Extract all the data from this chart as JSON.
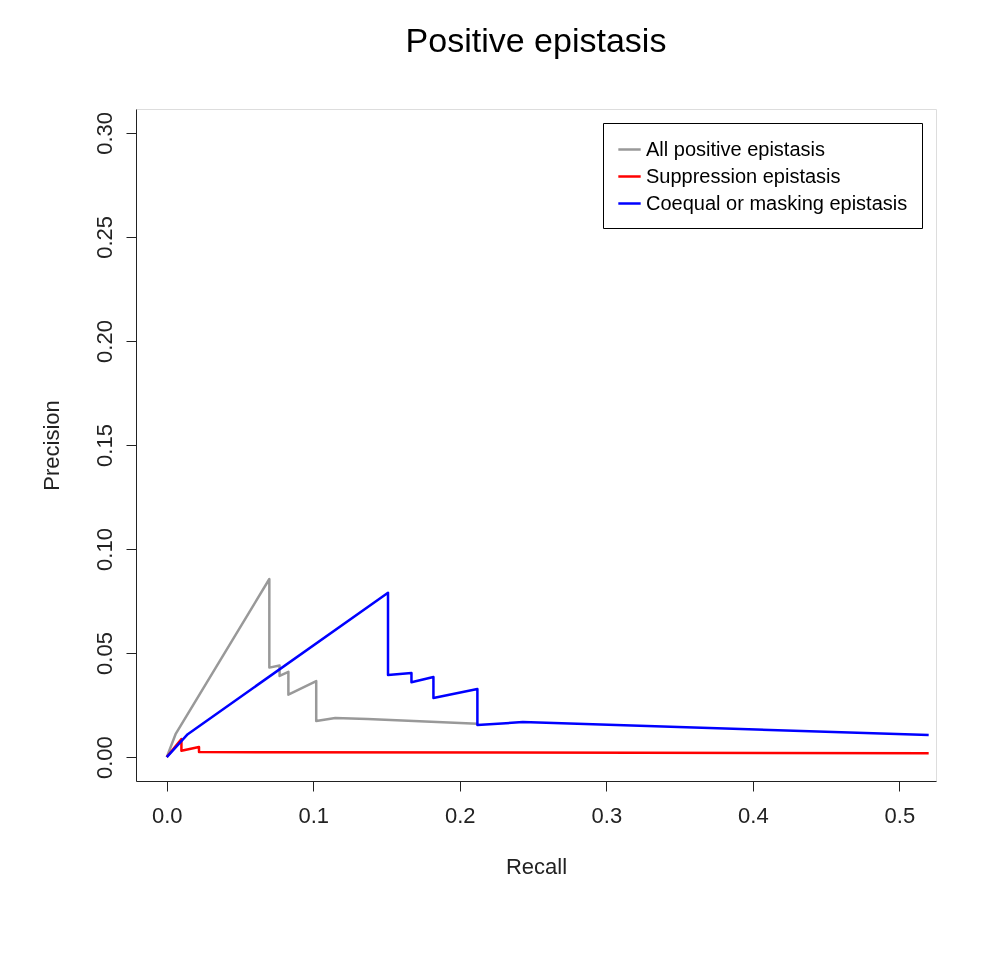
{
  "chart_data": {
    "type": "line",
    "title": "Positive epistasis",
    "xlabel": "Recall",
    "ylabel": "Precision",
    "xlim": [
      -0.021,
      0.525
    ],
    "ylim": [
      -0.0115,
      0.3115
    ],
    "xticks": [
      {
        "value": 0,
        "label": "0.0"
      },
      0.1,
      0.2,
      0.3,
      0.4,
      0.5
    ],
    "yticks": [
      {
        "value": 0,
        "label": "0.00"
      },
      0.05,
      {
        "value": 0.1,
        "label": "0.10"
      },
      0.15,
      {
        "value": 0.2,
        "label": "0.20"
      },
      0.25,
      {
        "value": 0.3,
        "label": "0.30"
      }
    ],
    "grid": false,
    "legend": "top right",
    "marker": "none",
    "line_style": "solid",
    "series": [
      {
        "name": "All positive epistasis",
        "color": "#999999",
        "x": [
          0,
          0.006,
          0.07,
          0.07,
          0.077,
          0.077,
          0.083,
          0.083,
          0.102,
          0.102,
          0.115,
          0.137,
          0.212
        ],
        "values": [
          0,
          0.011,
          0.0856,
          0.043,
          0.044,
          0.039,
          0.041,
          0.03,
          0.0365,
          0.0173,
          0.0188,
          0.0183,
          0.016
        ]
      },
      {
        "name": "Suppression epistasis",
        "color": "#ff0000",
        "x": [
          0,
          0.01,
          0.01,
          0.022,
          0.022,
          0.52
        ],
        "values": [
          0,
          0.0087,
          0.003,
          0.0048,
          0.0024,
          0.0018
        ]
      },
      {
        "name": "Coequal or masking epistasis",
        "color": "#0000ff",
        "x": [
          0,
          0.0143,
          0.151,
          0.151,
          0.167,
          0.167,
          0.182,
          0.182,
          0.212,
          0.212,
          0.243,
          0.52
        ],
        "values": [
          0,
          0.011,
          0.079,
          0.0394,
          0.0404,
          0.036,
          0.0385,
          0.0284,
          0.0327,
          0.0154,
          0.0168,
          0.0106
        ]
      }
    ]
  }
}
